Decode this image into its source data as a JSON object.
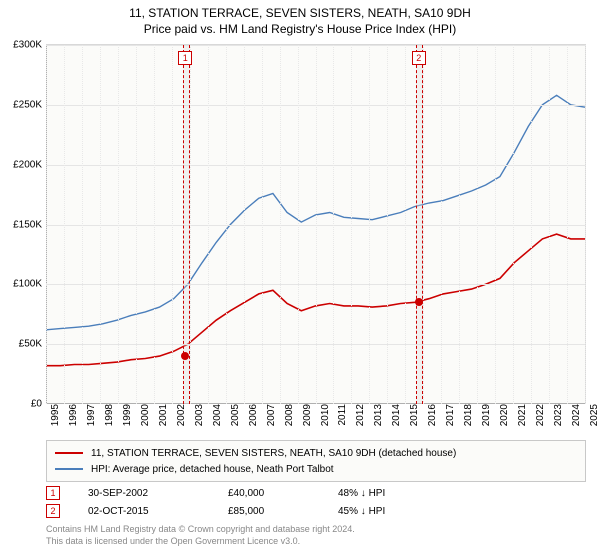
{
  "title": "11, STATION TERRACE, SEVEN SISTERS, NEATH, SA10 9DH",
  "subtitle": "Price paid vs. HM Land Registry's House Price Index (HPI)",
  "chart": {
    "type": "line",
    "background_color": "#fbfbf9",
    "grid_color": "#e5e5e5",
    "axis_color": "#b0b0b0",
    "x_years": [
      "1995",
      "1996",
      "1997",
      "1998",
      "1999",
      "2000",
      "2001",
      "2002",
      "2003",
      "2004",
      "2005",
      "2006",
      "2007",
      "2008",
      "2009",
      "2010",
      "2011",
      "2012",
      "2013",
      "2014",
      "2015",
      "2016",
      "2017",
      "2018",
      "2019",
      "2020",
      "2021",
      "2022",
      "2023",
      "2024",
      "2025"
    ],
    "y_ticks": [
      0,
      50000,
      100000,
      150000,
      200000,
      250000,
      300000
    ],
    "y_tick_labels": [
      "£0",
      "£50K",
      "£100K",
      "£150K",
      "£200K",
      "£250K",
      "£300K"
    ],
    "ylim": [
      0,
      300000
    ],
    "label_fontsize": 10,
    "series": [
      {
        "name": "hpi",
        "label": "HPI: Average price, detached house, Neath Port Talbot",
        "color": "#4a7ebb",
        "line_width": 1.4,
        "values": [
          62,
          63,
          64,
          65,
          67,
          70,
          74,
          77,
          81,
          88,
          100,
          118,
          135,
          150,
          162,
          172,
          176,
          160,
          152,
          158,
          160,
          156,
          155,
          154,
          157,
          160,
          165,
          168,
          170,
          174,
          178,
          183,
          190,
          210,
          232,
          250,
          258,
          250,
          248
        ]
      },
      {
        "name": "property",
        "label": "11, STATION TERRACE, SEVEN SISTERS, NEATH, SA10 9DH (detached house)",
        "color": "#cc0000",
        "line_width": 1.6,
        "values": [
          32,
          32,
          33,
          33,
          34,
          35,
          37,
          38,
          40,
          44,
          50,
          60,
          70,
          78,
          85,
          92,
          95,
          84,
          78,
          82,
          84,
          82,
          82,
          81,
          82,
          84,
          85,
          88,
          92,
          94,
          96,
          100,
          105,
          118,
          128,
          138,
          142,
          138,
          138
        ]
      }
    ],
    "highlights": [
      {
        "year_left": 2002.6,
        "year_right": 2003.0
      },
      {
        "year_left": 2015.6,
        "year_right": 2016.0
      }
    ],
    "markers": [
      {
        "id": "1",
        "year": 2002.75,
        "value": 40000,
        "box_top": 6
      },
      {
        "id": "2",
        "year": 2015.75,
        "value": 85000,
        "box_top": 6
      }
    ]
  },
  "legend": {
    "items": [
      {
        "color": "#cc0000",
        "text": "11, STATION TERRACE, SEVEN SISTERS, NEATH, SA10 9DH (detached house)"
      },
      {
        "color": "#4a7ebb",
        "text": "HPI: Average price, detached house, Neath Port Talbot"
      }
    ]
  },
  "sales": [
    {
      "id": "1",
      "date": "30-SEP-2002",
      "price": "£40,000",
      "delta": "48% ↓ HPI"
    },
    {
      "id": "2",
      "date": "02-OCT-2015",
      "price": "£85,000",
      "delta": "45% ↓ HPI"
    }
  ],
  "footnotes": [
    "Contains HM Land Registry data © Crown copyright and database right 2024.",
    "This data is licensed under the Open Government Licence v3.0."
  ]
}
